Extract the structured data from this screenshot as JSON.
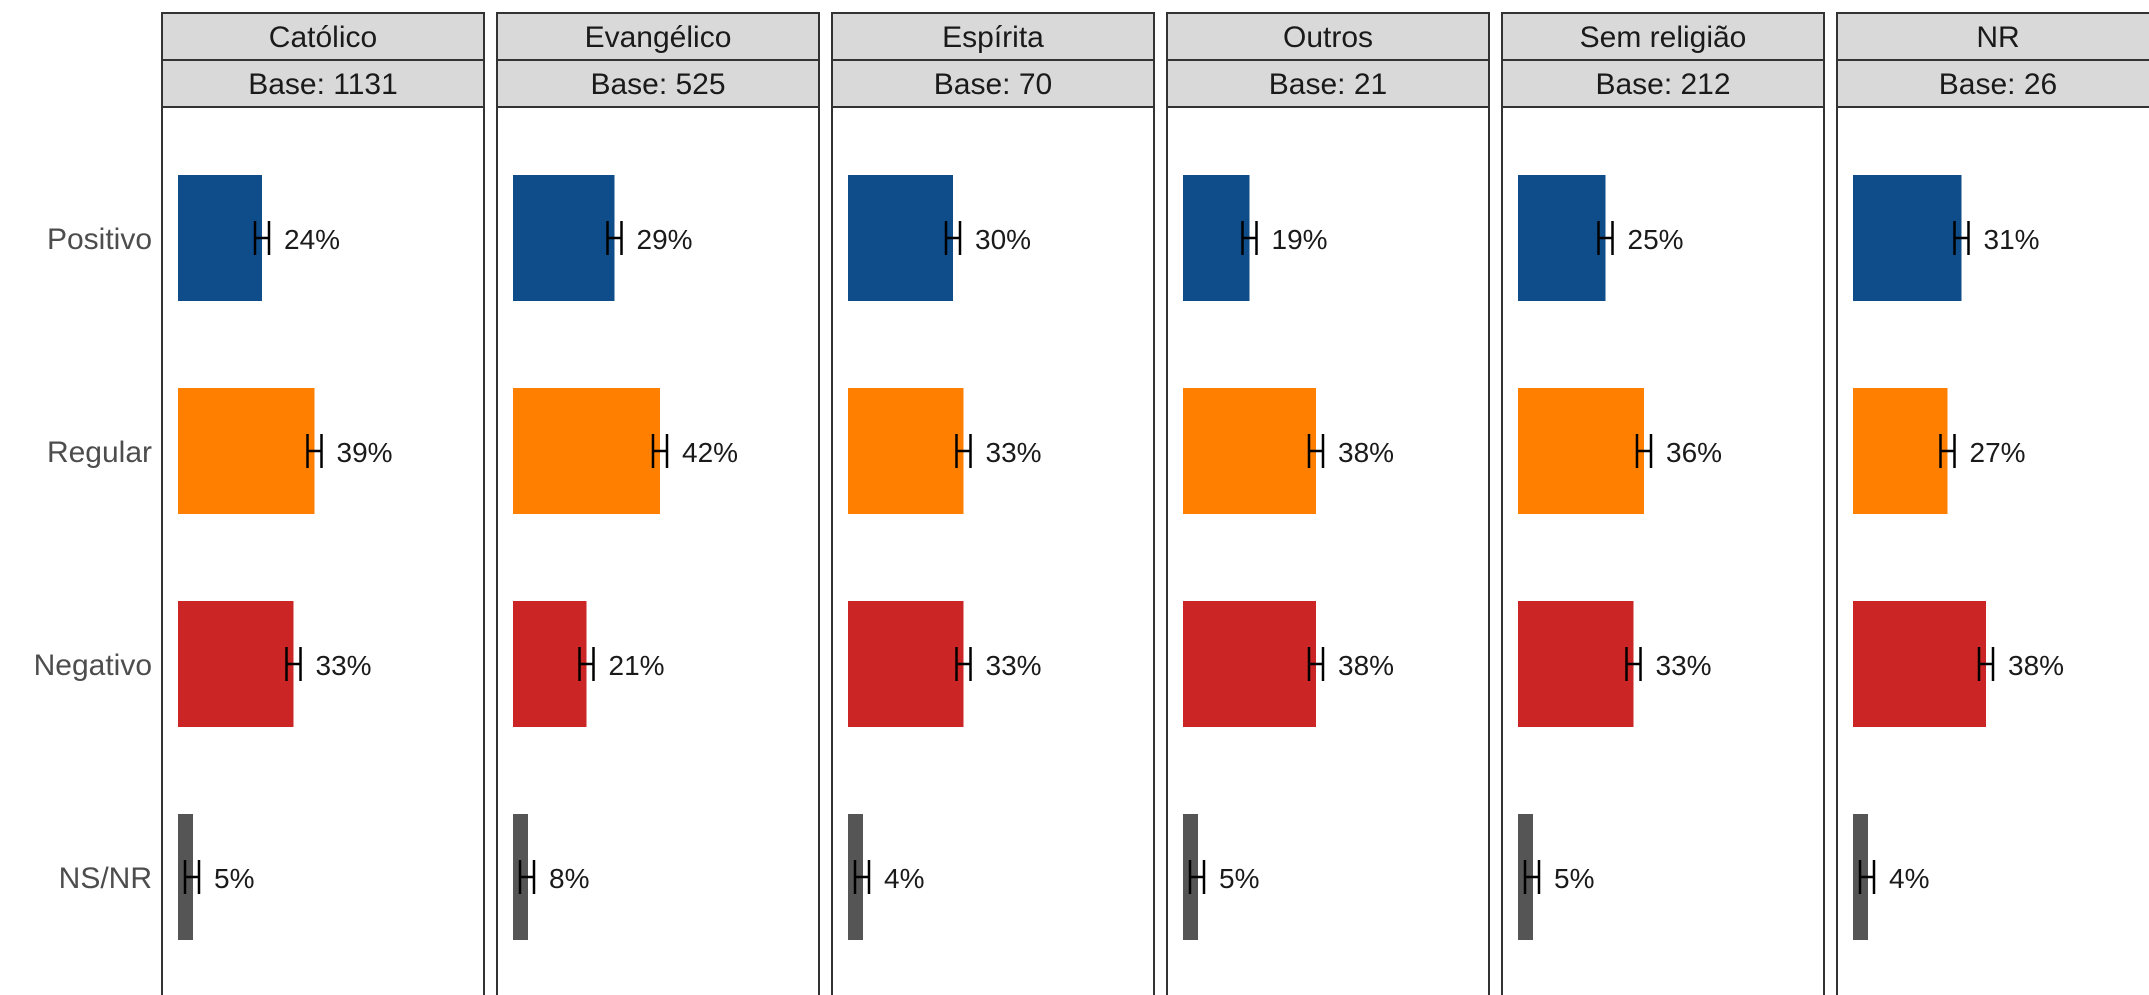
{
  "chart_data": {
    "type": "bar",
    "orientation": "horizontal",
    "facets": [
      {
        "title": "Católico",
        "base_label": "Base: 1131",
        "values": [
          24,
          39,
          33,
          5
        ]
      },
      {
        "title": "Evangélico",
        "base_label": "Base: 525",
        "values": [
          29,
          42,
          21,
          8
        ]
      },
      {
        "title": "Espírita",
        "base_label": "Base: 70",
        "values": [
          30,
          33,
          33,
          4
        ]
      },
      {
        "title": "Outros",
        "base_label": "Base: 21",
        "values": [
          19,
          38,
          38,
          5
        ]
      },
      {
        "title": "Sem religião",
        "base_label": "Base: 212",
        "values": [
          25,
          36,
          33,
          5
        ]
      },
      {
        "title": "NR",
        "base_label": "Base: 26",
        "values": [
          31,
          27,
          38,
          4
        ]
      }
    ],
    "categories": [
      "Positivo",
      "Regular",
      "Negativo",
      "NS/NR"
    ],
    "category_colors": [
      "#0f4c8a",
      "#ff7f00",
      "#cc2525",
      "#555555"
    ],
    "value_suffix": "%",
    "error_bars": true,
    "xlim": [
      0,
      100
    ],
    "grid": false,
    "legend": "none"
  }
}
